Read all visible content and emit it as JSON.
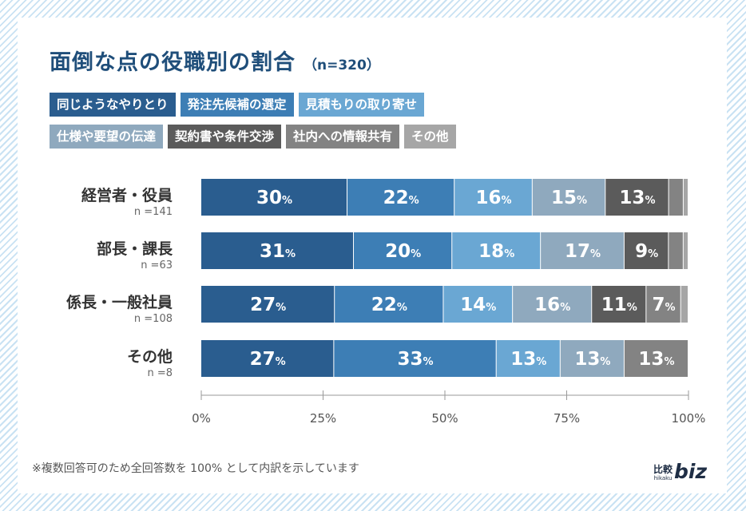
{
  "title": "面倒な点の役職別の割合",
  "subtitle": "（n=320）",
  "footnote": "※複数回答可のため全回答数を 100% として内訳を示しています",
  "logo": {
    "kanji": "比較",
    "kana": "hikaku",
    "biz": "biz"
  },
  "chart_data": {
    "type": "bar",
    "orientation": "horizontal-stacked-100",
    "title": "面倒な点の役職別の割合",
    "xlim": [
      0,
      100
    ],
    "x_ticks": [
      "0%",
      "25%",
      "50%",
      "75%",
      "100%"
    ],
    "x_tick_values": [
      0,
      25,
      50,
      75,
      100
    ],
    "legend_position": "top",
    "categories": [
      "経営者・役員",
      "部長・課長",
      "係長・一般社員",
      "その他"
    ],
    "category_n": [
      "n =141",
      "n =63",
      "n =108",
      "n =8"
    ],
    "series": [
      {
        "name": "同じようなやりとり",
        "color": "#2a5d8f",
        "values": [
          30,
          31,
          27,
          27
        ],
        "labels": [
          "30",
          "31",
          "27",
          "27"
        ]
      },
      {
        "name": "発注先候補の選定",
        "color": "#3d7eb5",
        "values": [
          22,
          20,
          22,
          33
        ],
        "labels": [
          "22",
          "20",
          "22",
          "33"
        ]
      },
      {
        "name": "見積もりの取り寄せ",
        "color": "#6aa7d3",
        "values": [
          16,
          18,
          14,
          13
        ],
        "labels": [
          "16",
          "18",
          "14",
          "13"
        ]
      },
      {
        "name": "仕様や要望の伝達",
        "color": "#8fa9be",
        "values": [
          15,
          17,
          16,
          13
        ],
        "labels": [
          "15",
          "17",
          "16",
          "13"
        ]
      },
      {
        "name": "契約書や条件交渉",
        "color": "#5b5b5b",
        "values": [
          13,
          9,
          11,
          0
        ],
        "labels": [
          "13",
          "9",
          "11",
          ""
        ]
      },
      {
        "name": "社内への情報共有",
        "color": "#838383",
        "values": [
          3,
          3,
          7,
          13
        ],
        "labels": [
          "",
          "",
          "7",
          "13"
        ]
      },
      {
        "name": "その他",
        "color": "#a6a6a6",
        "values": [
          1,
          1,
          1.5,
          0
        ],
        "labels": [
          "",
          "",
          "",
          ""
        ]
      }
    ],
    "value_suffix": "%"
  }
}
